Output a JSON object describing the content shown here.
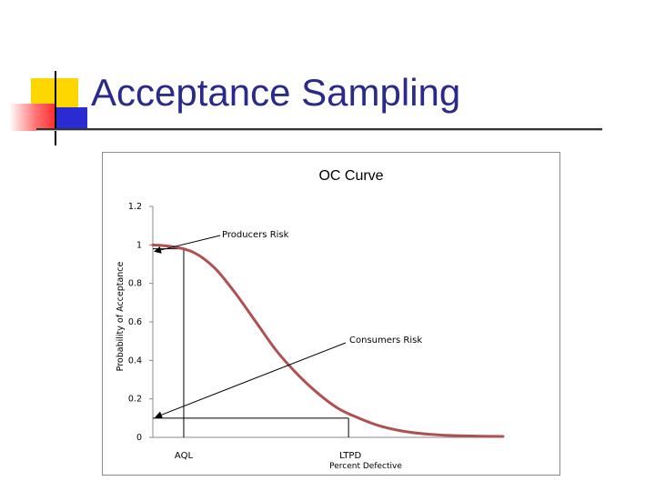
{
  "slide": {
    "title": "Acceptance Sampling",
    "colors": {
      "title": "#2a2a8c",
      "deco_yellow": "#ffd700",
      "deco_blue": "#2b2bd4",
      "deco_red": "#ff4040"
    }
  },
  "chart_data": {
    "type": "line",
    "title": "OC Curve",
    "xlabel": "Percent Defective",
    "ylabel": "Probability of Acceptance",
    "ylim": [
      0,
      1.2
    ],
    "y_ticks": [
      "0",
      "0.2",
      "0.4",
      "0.6",
      "0.8",
      "1",
      "1.2"
    ],
    "x_markers": [
      "AQL",
      "LTPD"
    ],
    "grid": false,
    "series": [
      {
        "color": "#b05050",
        "x": [
          0,
          1,
          2,
          3,
          4,
          5,
          6,
          7,
          8,
          9,
          10,
          11,
          12,
          13,
          14,
          15,
          16,
          17
        ],
        "values": [
          1.0,
          0.99,
          0.96,
          0.88,
          0.75,
          0.6,
          0.45,
          0.33,
          0.23,
          0.15,
          0.1,
          0.06,
          0.035,
          0.02,
          0.012,
          0.008,
          0.006,
          0.005
        ]
      }
    ],
    "reference_lines": {
      "aql": {
        "x": 1.5,
        "y": 0.98
      },
      "ltpd": {
        "x": 9.5,
        "y": 0.1
      }
    },
    "annotations": [
      {
        "text": "Producers Risk",
        "target": {
          "x": 0,
          "y": 0.98
        }
      },
      {
        "text": "Consumers Risk",
        "target": {
          "x": 0,
          "y": 0.1
        }
      }
    ],
    "x_range": [
      0,
      17
    ]
  }
}
